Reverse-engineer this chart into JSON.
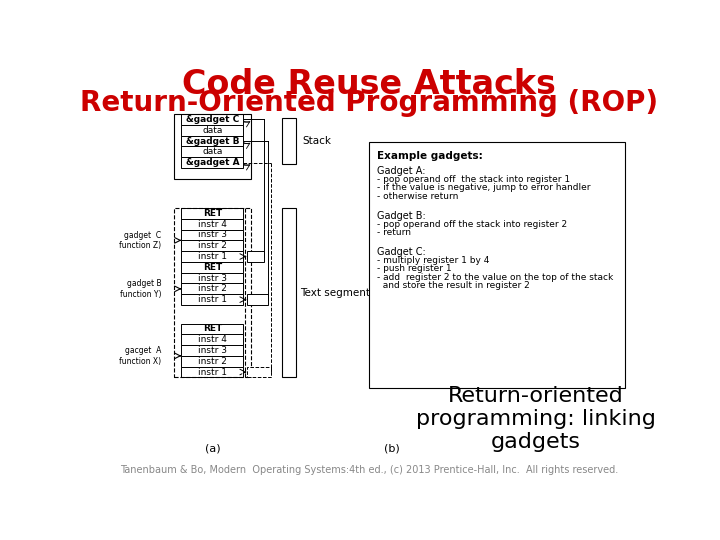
{
  "title_line1": "Code Reuse Attacks",
  "title_line2": "Return-Oriented Programming (ROP)",
  "title_color": "#cc0000",
  "title_fontsize": 24,
  "subtitle_fontsize": 20,
  "caption_text": "Return-oriented\nprogramming: linking\ngadgets",
  "caption_fontsize": 16,
  "footer_text": "Tanenbaum & Bo, Modern  Operating Systems:4th ed., (c) 2013 Prentice-Hall, Inc.  All rights reserved.",
  "footer_fontsize": 7,
  "bg_color": "#ffffff",
  "stack_labels": [
    "&gadget C",
    "data",
    "&gadget B",
    "data",
    "&gadget A"
  ],
  "gadget_c_instrs": [
    "RET",
    "instr 4",
    "instr 3",
    "instr 2",
    "instr 1"
  ],
  "gadget_b_instrs": [
    "RET",
    "instr 3",
    "instr 2",
    "instr 1"
  ],
  "gadget_a_instrs": [
    "RET",
    "instr 4",
    "instr 3",
    "instr 2",
    "instr 1"
  ],
  "example_gadgets_title": "Example gadgets:",
  "gadget_a_title": "Gadget A:",
  "gadget_a_lines": [
    "- pop operand off  the stack into register 1",
    "- if the value is negative, jump to error handler",
    "- otherwise return"
  ],
  "gadget_b_title": "Gadget B:",
  "gadget_b_lines": [
    "- pop operand off the stack into register 2",
    "- return"
  ],
  "gadget_c_title": "Gadget C:",
  "gadget_c_lines": [
    "- multiply register 1 by 4",
    "- push register 1",
    "- add  register 2 to the value on the top of the stack",
    "  and store the result in register 2"
  ],
  "text_segment_label": "Text segment",
  "stack_label": "Stack",
  "gadget_c_label": "gadget  C\nfunction Z)",
  "gadget_b_label": "gadget B\nfunction Y)",
  "gadget_a_label": "gacget  A\nfunction X)",
  "fig_a_label": "(a)",
  "fig_b_label": "(b)"
}
